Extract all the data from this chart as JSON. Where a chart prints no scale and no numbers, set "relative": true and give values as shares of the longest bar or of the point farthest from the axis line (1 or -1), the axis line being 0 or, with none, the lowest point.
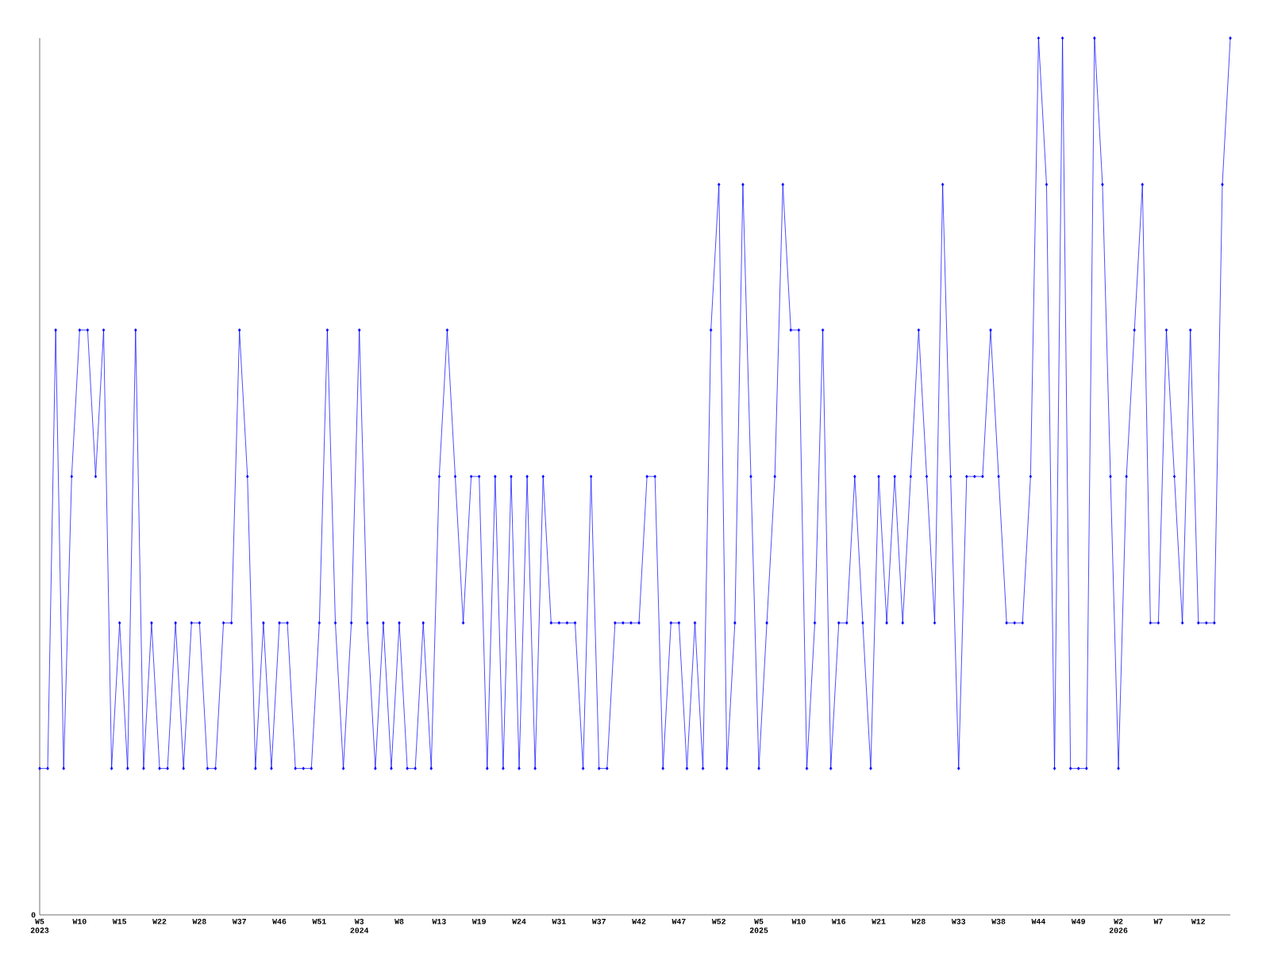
{
  "chart_data": {
    "type": "line",
    "relative": true,
    "color": "#0000ff",
    "marker": "diamond",
    "line_style": "solid",
    "annotations": [
      "0"
    ],
    "categories": [
      "W5 2023",
      null,
      null,
      null,
      null,
      "W10",
      null,
      null,
      null,
      null,
      "W15",
      null,
      null,
      null,
      null,
      "W22",
      null,
      null,
      null,
      null,
      "W28",
      null,
      null,
      null,
      null,
      "W37",
      null,
      null,
      null,
      null,
      "W46",
      null,
      null,
      null,
      null,
      "W51",
      null,
      null,
      null,
      null,
      "W3 2024",
      null,
      null,
      null,
      null,
      "W8",
      null,
      null,
      null,
      null,
      "W13",
      null,
      null,
      null,
      null,
      "W19",
      null,
      null,
      null,
      null,
      "W24",
      null,
      null,
      null,
      null,
      "W31",
      null,
      null,
      null,
      null,
      "W37",
      null,
      null,
      null,
      null,
      "W42",
      null,
      null,
      null,
      null,
      "W47",
      null,
      null,
      null,
      null,
      "W52",
      null,
      null,
      null,
      null,
      "W5 2025",
      null,
      null,
      null,
      null,
      "W10",
      null,
      null,
      null,
      null,
      "W16",
      null,
      null,
      null,
      null,
      "W21",
      null,
      null,
      null,
      null,
      "W28",
      null,
      null,
      null,
      null,
      "W33",
      null,
      null,
      null,
      null,
      "W38",
      null,
      null,
      null,
      null,
      "W44",
      null,
      null,
      null,
      null,
      "W49",
      null,
      null,
      null,
      null,
      "W2 2026",
      null,
      null,
      null,
      null,
      "W7",
      null,
      null,
      null,
      null,
      "W12",
      null,
      null,
      null,
      null
    ],
    "values": [
      0.167,
      0.167,
      0.667,
      0.167,
      0.5,
      0.667,
      0.667,
      0.5,
      0.667,
      0.167,
      0.333,
      0.167,
      0.667,
      0.167,
      0.333,
      0.167,
      0.167,
      0.333,
      0.167,
      0.333,
      0.333,
      0.167,
      0.167,
      0.333,
      0.333,
      0.667,
      0.5,
      0.167,
      0.333,
      0.167,
      0.333,
      0.333,
      0.167,
      0.167,
      0.167,
      0.333,
      0.667,
      0.333,
      0.167,
      0.333,
      0.667,
      0.333,
      0.167,
      0.333,
      0.167,
      0.333,
      0.167,
      0.167,
      0.333,
      0.167,
      0.5,
      0.667,
      0.5,
      0.333,
      0.5,
      0.5,
      0.167,
      0.5,
      0.167,
      0.5,
      0.167,
      0.5,
      0.167,
      0.5,
      0.333,
      0.333,
      0.333,
      0.333,
      0.167,
      0.5,
      0.167,
      0.167,
      0.333,
      0.333,
      0.333,
      0.333,
      0.5,
      0.5,
      0.167,
      0.333,
      0.333,
      0.167,
      0.333,
      0.167,
      0.667,
      0.833,
      0.167,
      0.333,
      0.833,
      0.5,
      0.167,
      0.333,
      0.5,
      0.833,
      0.667,
      0.667,
      0.167,
      0.333,
      0.667,
      0.167,
      0.333,
      0.333,
      0.5,
      0.333,
      0.167,
      0.5,
      0.333,
      0.5,
      0.333,
      0.5,
      0.667,
      0.5,
      0.333,
      0.833,
      0.5,
      0.167,
      0.5,
      0.5,
      0.5,
      0.667,
      0.5,
      0.333,
      0.333,
      0.333,
      0.5,
      1,
      0.833,
      0.167,
      1,
      0.167,
      0.167,
      0.167,
      1,
      0.833,
      0.5,
      0.167,
      0.5,
      0.667,
      0.833,
      0.333,
      0.333,
      0.667,
      0.5,
      0.333,
      0.667,
      0.333,
      0.333,
      0.333,
      0.833,
      1
    ]
  }
}
